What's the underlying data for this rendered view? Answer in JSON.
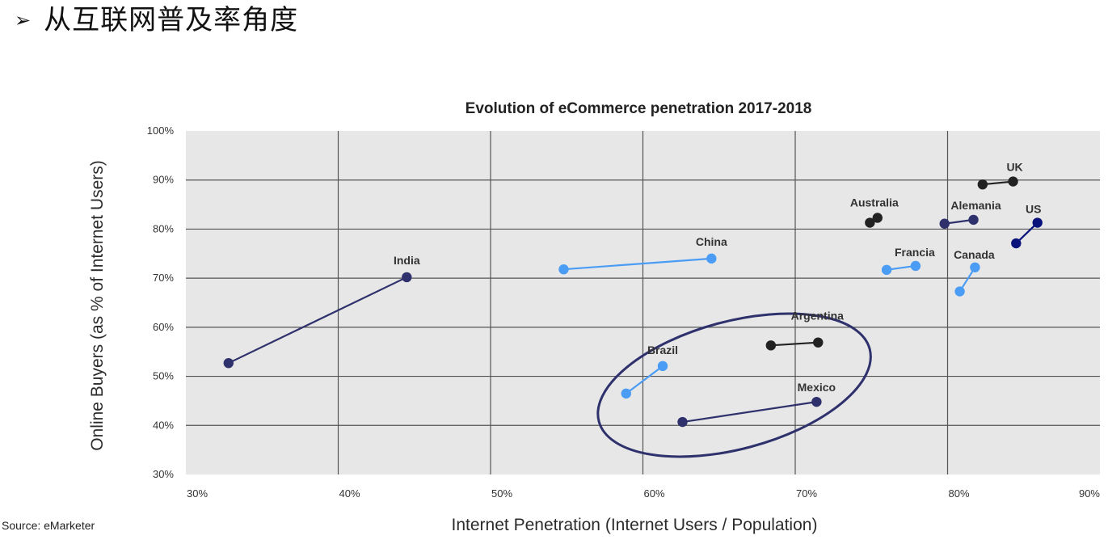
{
  "page": {
    "heading_bullet": "➢",
    "heading_text": "从互联网普及率角度",
    "source": "Source: eMarketer"
  },
  "colors": {
    "plot_background": "#e7e7e7",
    "grid": "#555555",
    "dark_navy": "#2f316c",
    "light_blue": "#4a9cf4",
    "dark_gray": "#222222",
    "us_blue": "#08127a",
    "ellipse": "#2f316c"
  },
  "chart_data": {
    "type": "scatter",
    "title": "Evolution of eCommerce penetration 2017-2018",
    "xlabel": "Internet Penetration (Internet Users / Population)",
    "ylabel": "Online Buyers (as % of Internet Users)",
    "xlim": [
      30,
      90
    ],
    "ylim": [
      30,
      100
    ],
    "x_ticks": [
      "30%",
      "40%",
      "50%",
      "60%",
      "70%",
      "80%",
      "90%"
    ],
    "y_ticks": [
      "100%",
      "90%",
      "80%",
      "70%",
      "60%",
      "50%",
      "40%",
      "30%"
    ],
    "grid": true,
    "legend": "none",
    "series": [
      {
        "name": "India",
        "color_key": "dark_navy",
        "points": [
          {
            "x": 32.8,
            "y": 52.7
          },
          {
            "x": 44.5,
            "y": 70.2
          }
        ]
      },
      {
        "name": "China",
        "color_key": "light_blue",
        "points": [
          {
            "x": 54.8,
            "y": 71.8
          },
          {
            "x": 64.5,
            "y": 74.0
          }
        ]
      },
      {
        "name": "Australia",
        "color_key": "dark_gray",
        "points": [
          {
            "x": 74.9,
            "y": 81.3
          },
          {
            "x": 75.4,
            "y": 82.3
          }
        ]
      },
      {
        "name": "UK",
        "color_key": "dark_gray",
        "points": [
          {
            "x": 82.3,
            "y": 89.1
          },
          {
            "x": 84.3,
            "y": 89.7
          }
        ]
      },
      {
        "name": "Alemania",
        "color_key": "dark_navy",
        "points": [
          {
            "x": 79.8,
            "y": 81.1
          },
          {
            "x": 81.7,
            "y": 81.9
          }
        ]
      },
      {
        "name": "US",
        "color_key": "us_blue",
        "points": [
          {
            "x": 84.5,
            "y": 77.1
          },
          {
            "x": 85.9,
            "y": 81.3
          }
        ]
      },
      {
        "name": "Francia",
        "color_key": "light_blue",
        "points": [
          {
            "x": 76.0,
            "y": 71.7
          },
          {
            "x": 77.9,
            "y": 72.5
          }
        ]
      },
      {
        "name": "Canada",
        "color_key": "light_blue",
        "points": [
          {
            "x": 80.8,
            "y": 67.3
          },
          {
            "x": 81.8,
            "y": 72.2
          }
        ]
      },
      {
        "name": "Argentina",
        "color_key": "dark_gray",
        "points": [
          {
            "x": 68.4,
            "y": 56.3
          },
          {
            "x": 71.5,
            "y": 56.9
          }
        ]
      },
      {
        "name": "Brazil",
        "color_key": "light_blue",
        "points": [
          {
            "x": 58.9,
            "y": 46.5
          },
          {
            "x": 61.3,
            "y": 52.1
          }
        ]
      },
      {
        "name": "Mexico",
        "color_key": "dark_navy",
        "points": [
          {
            "x": 62.6,
            "y": 40.7
          },
          {
            "x": 71.4,
            "y": 44.8
          }
        ]
      }
    ],
    "highlight_ellipse": {
      "encloses": [
        "Brazil",
        "Argentina",
        "Mexico"
      ],
      "center": {
        "x": 66.0,
        "y": 48.2
      },
      "radius_x": 9.2,
      "radius_y": 13.0,
      "rotation_deg": -15
    }
  }
}
